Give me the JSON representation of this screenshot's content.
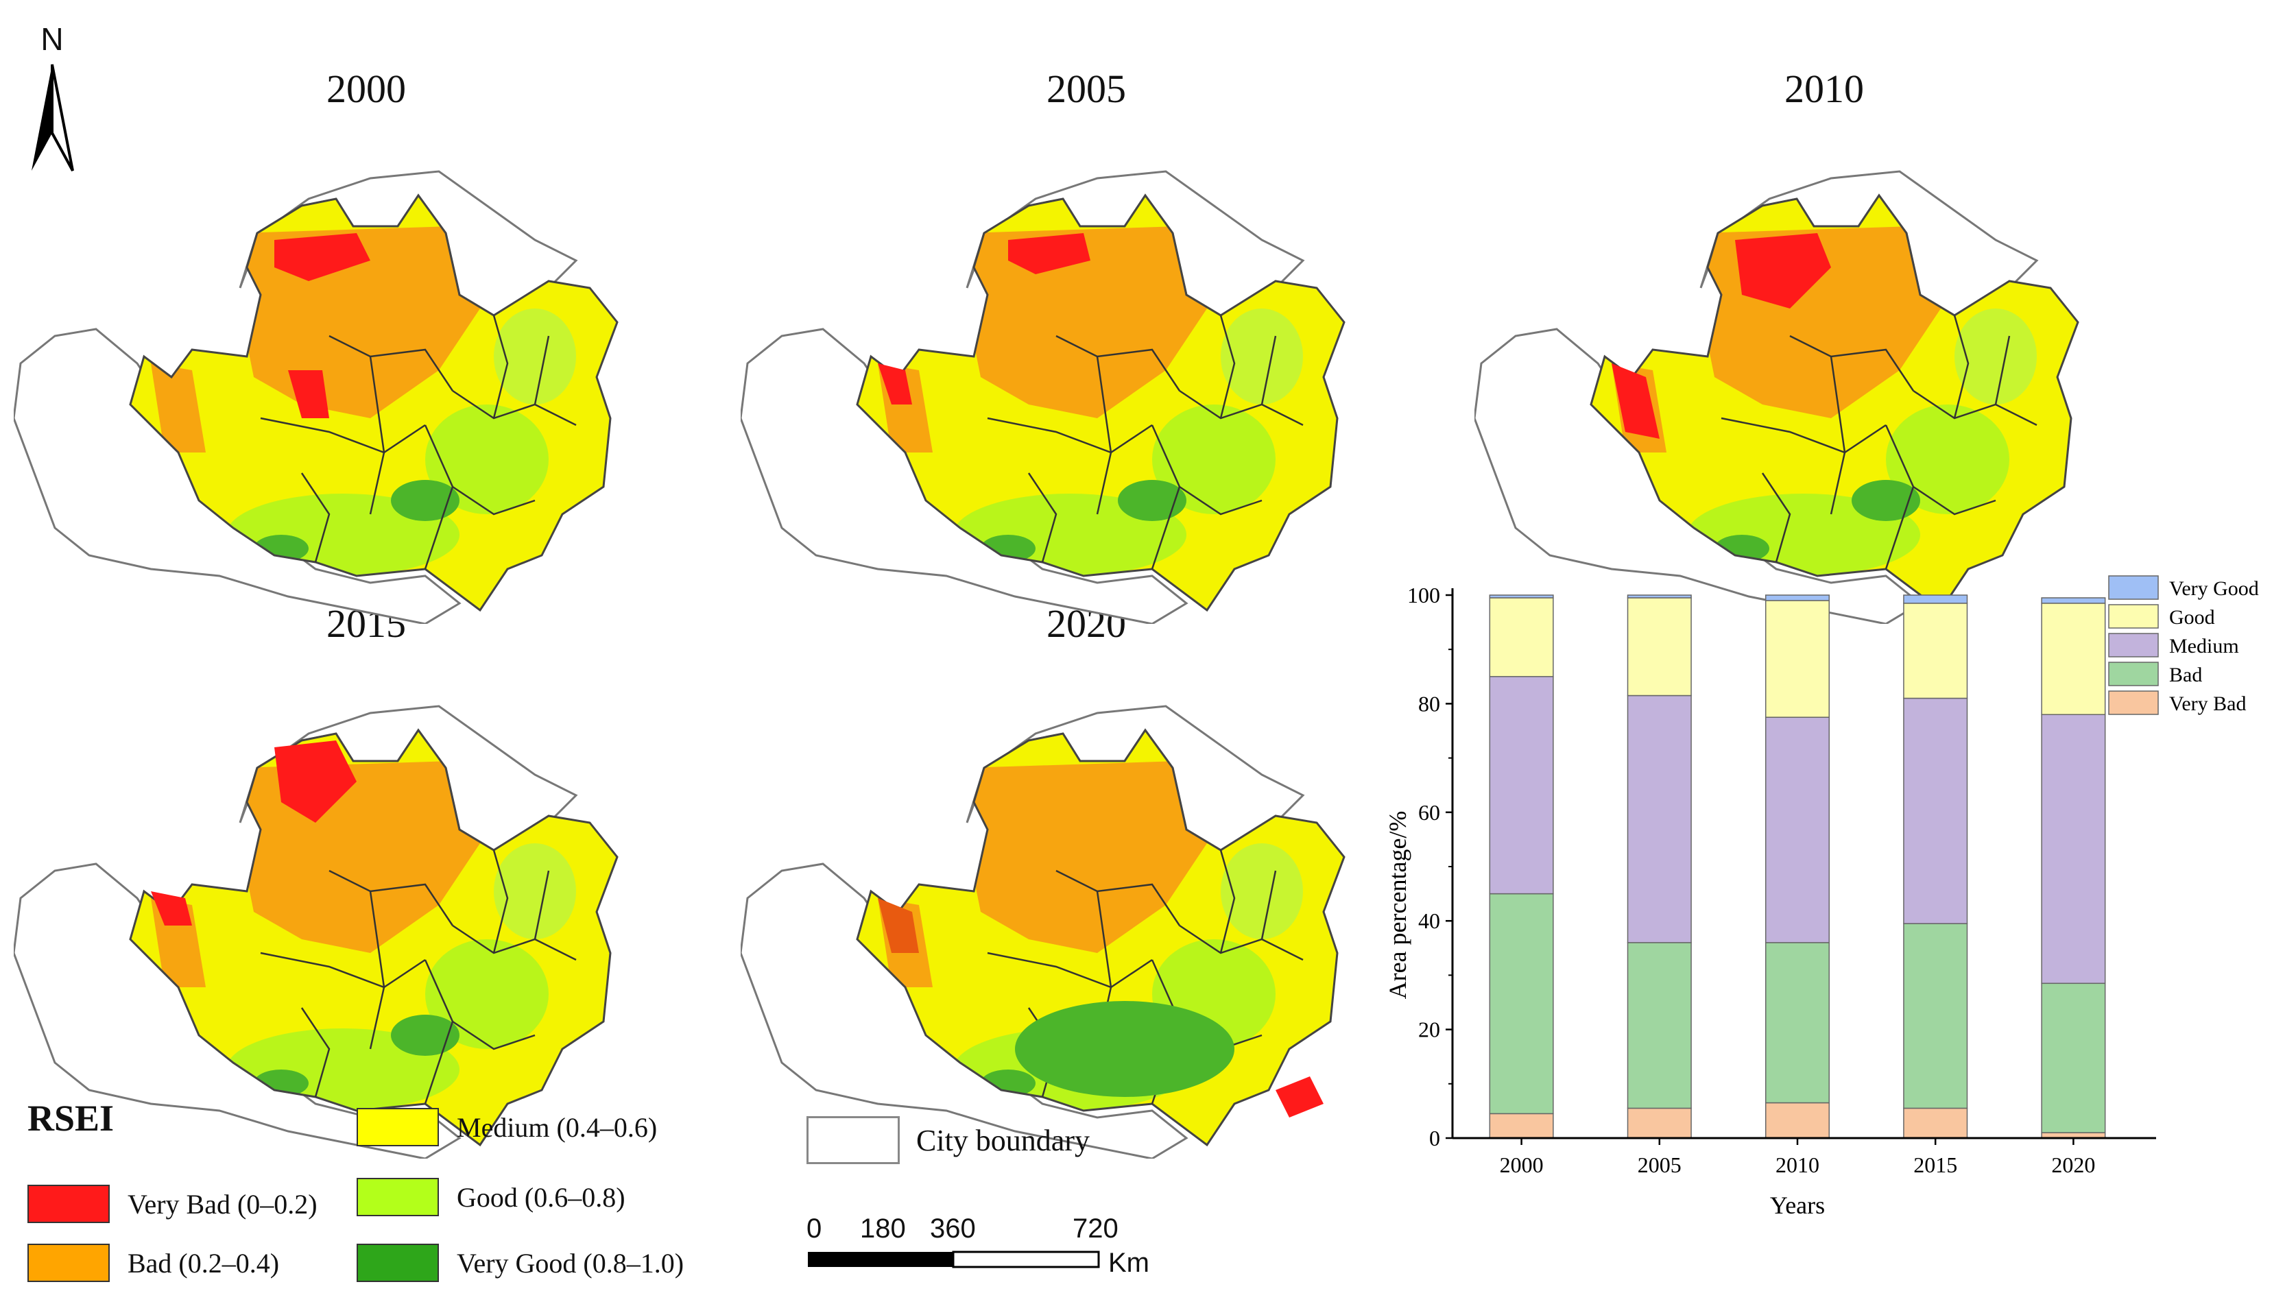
{
  "north_arrow": {
    "label": "N"
  },
  "maps": [
    {
      "year": "2000"
    },
    {
      "year": "2005"
    },
    {
      "year": "2010"
    },
    {
      "year": "2015"
    },
    {
      "year": "2020"
    }
  ],
  "legend": {
    "title": "RSEI",
    "items": [
      {
        "label": "Very Bad (0–0.2)",
        "color": "#ff1a1a"
      },
      {
        "label": "Bad (0.2–0.4)",
        "color": "#ffa500"
      },
      {
        "label": "Medium (0.4–0.6)",
        "color": "#ffff00"
      },
      {
        "label": "Good (0.6–0.8)",
        "color": "#b3ff1a"
      },
      {
        "label": "Very Good (0.8–1.0)",
        "color": "#2ea61a"
      }
    ],
    "city_boundary_label": "City boundary"
  },
  "scale_bar": {
    "ticks": [
      "0",
      "180",
      "360",
      "720"
    ],
    "unit": "Km"
  },
  "chart_data": {
    "type": "bar",
    "stacked": true,
    "categories": [
      "2000",
      "2005",
      "2010",
      "2015",
      "2020"
    ],
    "series": [
      {
        "name": "Very Bad",
        "color": "#f9c69f",
        "values": [
          4.5,
          5.5,
          6.5,
          5.5,
          1.0
        ]
      },
      {
        "name": "Bad",
        "color": "#9fd6a0",
        "values": [
          40.5,
          30.5,
          29.5,
          34.0,
          27.5
        ]
      },
      {
        "name": "Medium",
        "color": "#c2b3dc",
        "values": [
          40.0,
          45.5,
          41.5,
          41.5,
          49.5
        ]
      },
      {
        "name": "Good",
        "color": "#fdfdb0",
        "values": [
          14.5,
          18.0,
          21.5,
          17.5,
          20.5
        ]
      },
      {
        "name": "Very Good",
        "color": "#9fbff5",
        "values": [
          0.5,
          0.5,
          1.0,
          1.5,
          1.0
        ]
      }
    ],
    "xlabel": "Years",
    "ylabel": "Area percentage/%",
    "ylim": [
      0,
      100
    ],
    "yticks": [
      0,
      20,
      40,
      60,
      80,
      100
    ],
    "legend_position": "top-right"
  }
}
